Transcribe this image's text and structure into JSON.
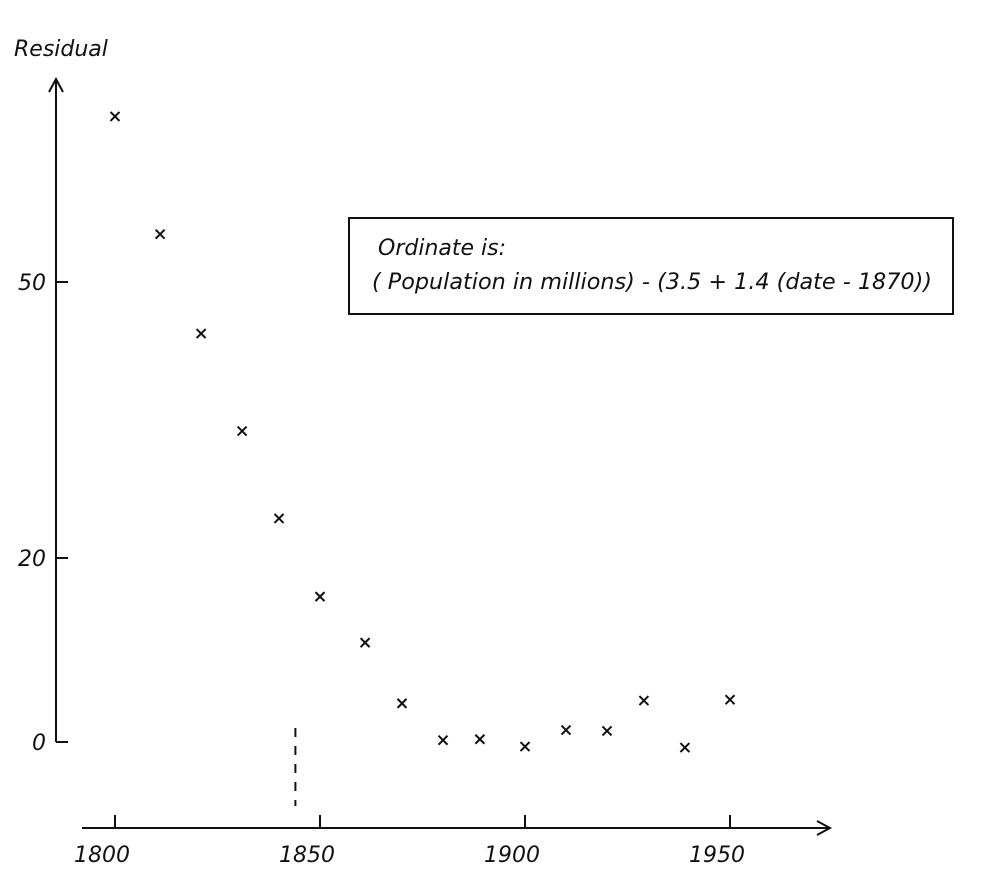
{
  "chart_data": {
    "type": "scatter",
    "title": "",
    "xlabel": "",
    "ylabel": "Residual",
    "annotation": {
      "line1": "Ordinate is:",
      "line2": "( Population in millions) - (3.5 + 1.4 (date - 1870))"
    },
    "x_ticks": [
      {
        "value": 1800,
        "label": "1800"
      },
      {
        "value": 1850,
        "label": "1850"
      },
      {
        "value": 1900,
        "label": "1900"
      },
      {
        "value": 1950,
        "label": "1950"
      }
    ],
    "y_ticks": [
      {
        "value": 0,
        "label": "0"
      },
      {
        "value": 20,
        "label": "20"
      },
      {
        "value": 50,
        "label": "50"
      }
    ],
    "x_range": [
      1790,
      1975
    ],
    "y_range": [
      -9,
      72
    ],
    "reference_line_x": 1844,
    "grid": false,
    "marker": "x",
    "color": "#111111",
    "series": [
      {
        "x": [
          1800,
          1811,
          1821,
          1831,
          1840,
          1850,
          1861,
          1870,
          1880,
          1889,
          1900,
          1910,
          1920,
          1929,
          1939,
          1950
        ],
        "y": [
          68,
          55.2,
          44.4,
          33.8,
          24.3,
          15.8,
          10.8,
          4.2,
          0.2,
          0.3,
          -0.5,
          1.3,
          1.2,
          4.5,
          -0.6,
          4.6
        ]
      }
    ]
  }
}
